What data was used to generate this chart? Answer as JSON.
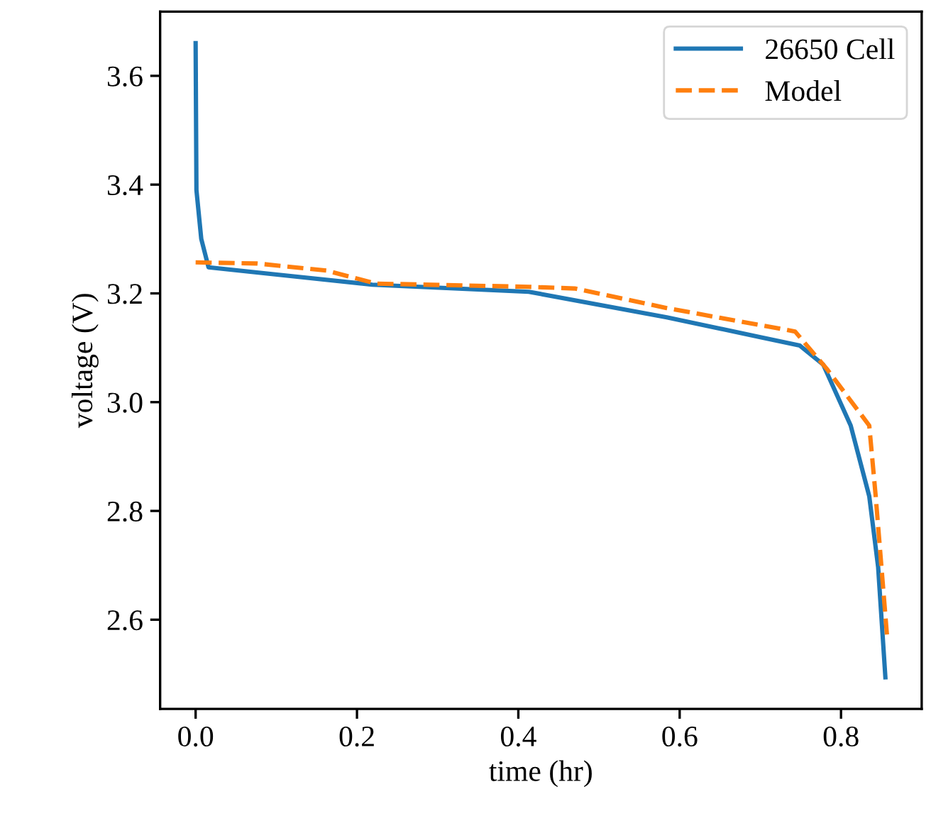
{
  "chart_data": {
    "type": "line",
    "xlabel": "time (hr)",
    "ylabel": "voltage (V)",
    "xlim": [
      -0.044,
      0.9
    ],
    "ylim": [
      2.436,
      3.718
    ],
    "xticks": [
      {
        "value": 0,
        "label": "0.0"
      },
      0.2,
      0.4,
      0.6,
      0.8
    ],
    "yticks": [
      2.6,
      2.8,
      {
        "value": 3,
        "label": "3.0"
      },
      3.2,
      3.4,
      3.6
    ],
    "grid": false,
    "legend": "top right",
    "series": [
      {
        "name": "26650 Cell",
        "color": "#1f77b4",
        "line_style": "solid",
        "x": [
          0.0,
          0.001,
          0.007,
          0.016,
          0.105,
          0.219,
          0.413,
          0.584,
          0.698,
          0.749,
          0.778,
          0.812,
          0.835,
          0.846,
          0.855
        ],
        "values": [
          3.66,
          3.39,
          3.3,
          3.248,
          3.234,
          3.216,
          3.203,
          3.156,
          3.12,
          3.104,
          3.069,
          2.957,
          2.827,
          2.697,
          2.494
        ]
      },
      {
        "name": "Model",
        "color": "#ff7f0e",
        "line_style": "dashed",
        "x": [
          0.0,
          0.076,
          0.162,
          0.224,
          0.413,
          0.47,
          0.584,
          0.743,
          0.783,
          0.835,
          0.843,
          0.857
        ],
        "values": [
          3.257,
          3.255,
          3.242,
          3.218,
          3.212,
          3.209,
          3.173,
          3.13,
          3.06,
          2.957,
          2.827,
          2.571
        ]
      }
    ]
  }
}
